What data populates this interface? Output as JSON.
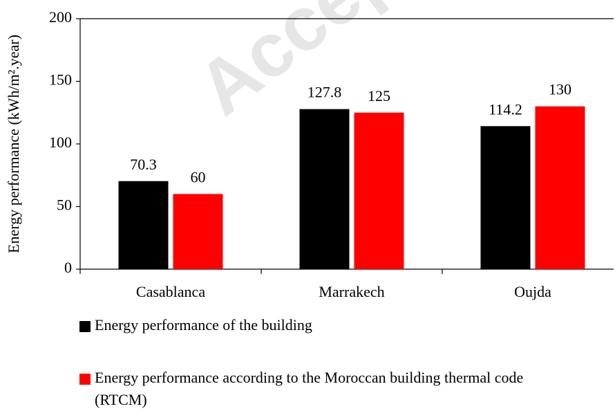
{
  "watermark": "Accepted",
  "chart_data": {
    "type": "bar",
    "y_label": "Energy performance (kWh/m².year)",
    "categories": [
      "Casablanca",
      "Marrakech",
      "Oujda"
    ],
    "series": [
      {
        "name": "Energy performance of the building",
        "color": "#000000",
        "values": [
          70.3,
          127.8,
          114.2
        ]
      },
      {
        "name": "Energy performance according to the Moroccan building thermal code (RTCM)",
        "color": "#ff0000",
        "values": [
          60,
          125,
          130
        ]
      }
    ],
    "ylim": [
      0,
      200
    ],
    "yticks": [
      0,
      50,
      100,
      150,
      200
    ],
    "grid": false,
    "legend": "bottom"
  }
}
